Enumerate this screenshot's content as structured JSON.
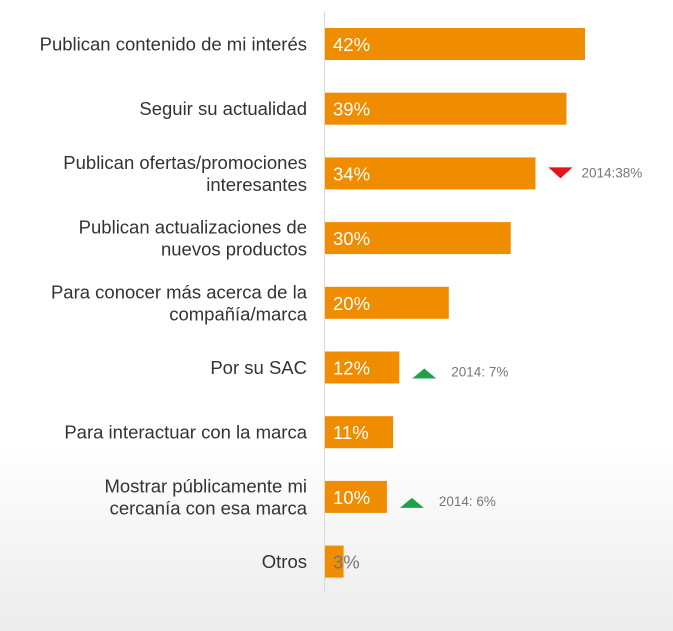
{
  "chart_data": {
    "type": "bar",
    "orientation": "horizontal",
    "categories": [
      "Publican contenido de mi interés",
      "Seguir su actualidad",
      "Publican ofertas/promociones interesantes",
      "Publican actualizaciones de nuevos productos",
      "Para conocer más acerca de la compañía/marca",
      "Por su SAC",
      "Para interactuar con la marca",
      "Mostrar públicamente mi cercanía con esa marca",
      "Otros"
    ],
    "category_lines": [
      [
        "Publican contenido de mi interés"
      ],
      [
        "Seguir su actualidad"
      ],
      [
        "Publican ofertas/promociones",
        "interesantes"
      ],
      [
        "Publican actualizaciones de",
        "nuevos productos"
      ],
      [
        "Para conocer más acerca de la",
        "compañía/marca"
      ],
      [
        "Por su SAC"
      ],
      [
        "Para interactuar con la marca"
      ],
      [
        "Mostrar públicamente mi",
        "cercanía con esa marca"
      ],
      [
        "Otros"
      ]
    ],
    "values": [
      42,
      39,
      34,
      30,
      20,
      12,
      11,
      10,
      3
    ],
    "value_labels": [
      "42%",
      "39%",
      "34%",
      "30%",
      "20%",
      "12%",
      "11%",
      "10%",
      "3%"
    ],
    "annotations": [
      {
        "category_index": 2,
        "direction": "down",
        "text": "2014:38%",
        "color": "#e3141b"
      },
      {
        "category_index": 5,
        "direction": "up",
        "text": "2014: 7%",
        "color": "#1fa24a"
      },
      {
        "category_index": 7,
        "direction": "up",
        "text": "2014: 6%",
        "color": "#1fa24a"
      }
    ],
    "xlim": [
      0,
      42
    ],
    "bar_color": "#f08c00",
    "value_label_color": "#ffffff",
    "axis_color": "#d9d9d9",
    "grid": false,
    "legend": "none"
  }
}
